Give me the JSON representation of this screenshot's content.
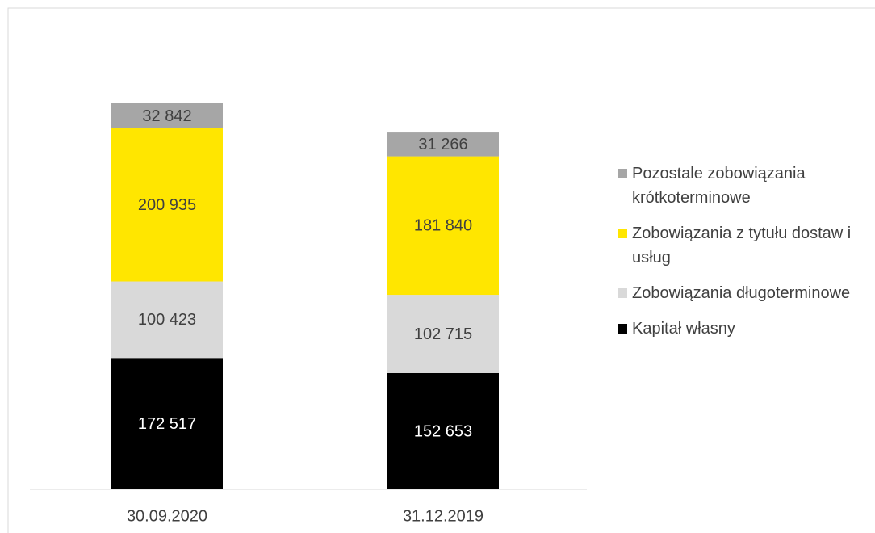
{
  "chart_data": {
    "type": "stacked_bar",
    "categories": [
      "30.09.2020",
      "31.12.2019"
    ],
    "series": [
      {
        "name": "Kapitał własny",
        "color": "#000000",
        "values": [
          172517,
          152653
        ],
        "value_labels": [
          "172 517",
          "152 653"
        ]
      },
      {
        "name": "Zobowiązania długoterminowe",
        "color": "#d9d9d9",
        "values": [
          100423,
          102715
        ],
        "value_labels": [
          "100 423",
          "102 715"
        ]
      },
      {
        "name": "Zobowiązania z tytułu dostaw i usług",
        "color": "#ffe600",
        "values": [
          200935,
          181840
        ],
        "value_labels": [
          "200 935",
          "181 840"
        ]
      },
      {
        "name": "Pozostale zobowiązania krótkoterminowe",
        "color": "#a6a6a6",
        "values": [
          32842,
          31266
        ],
        "value_labels": [
          "32 842",
          "31 266"
        ]
      }
    ],
    "legend": "right"
  }
}
